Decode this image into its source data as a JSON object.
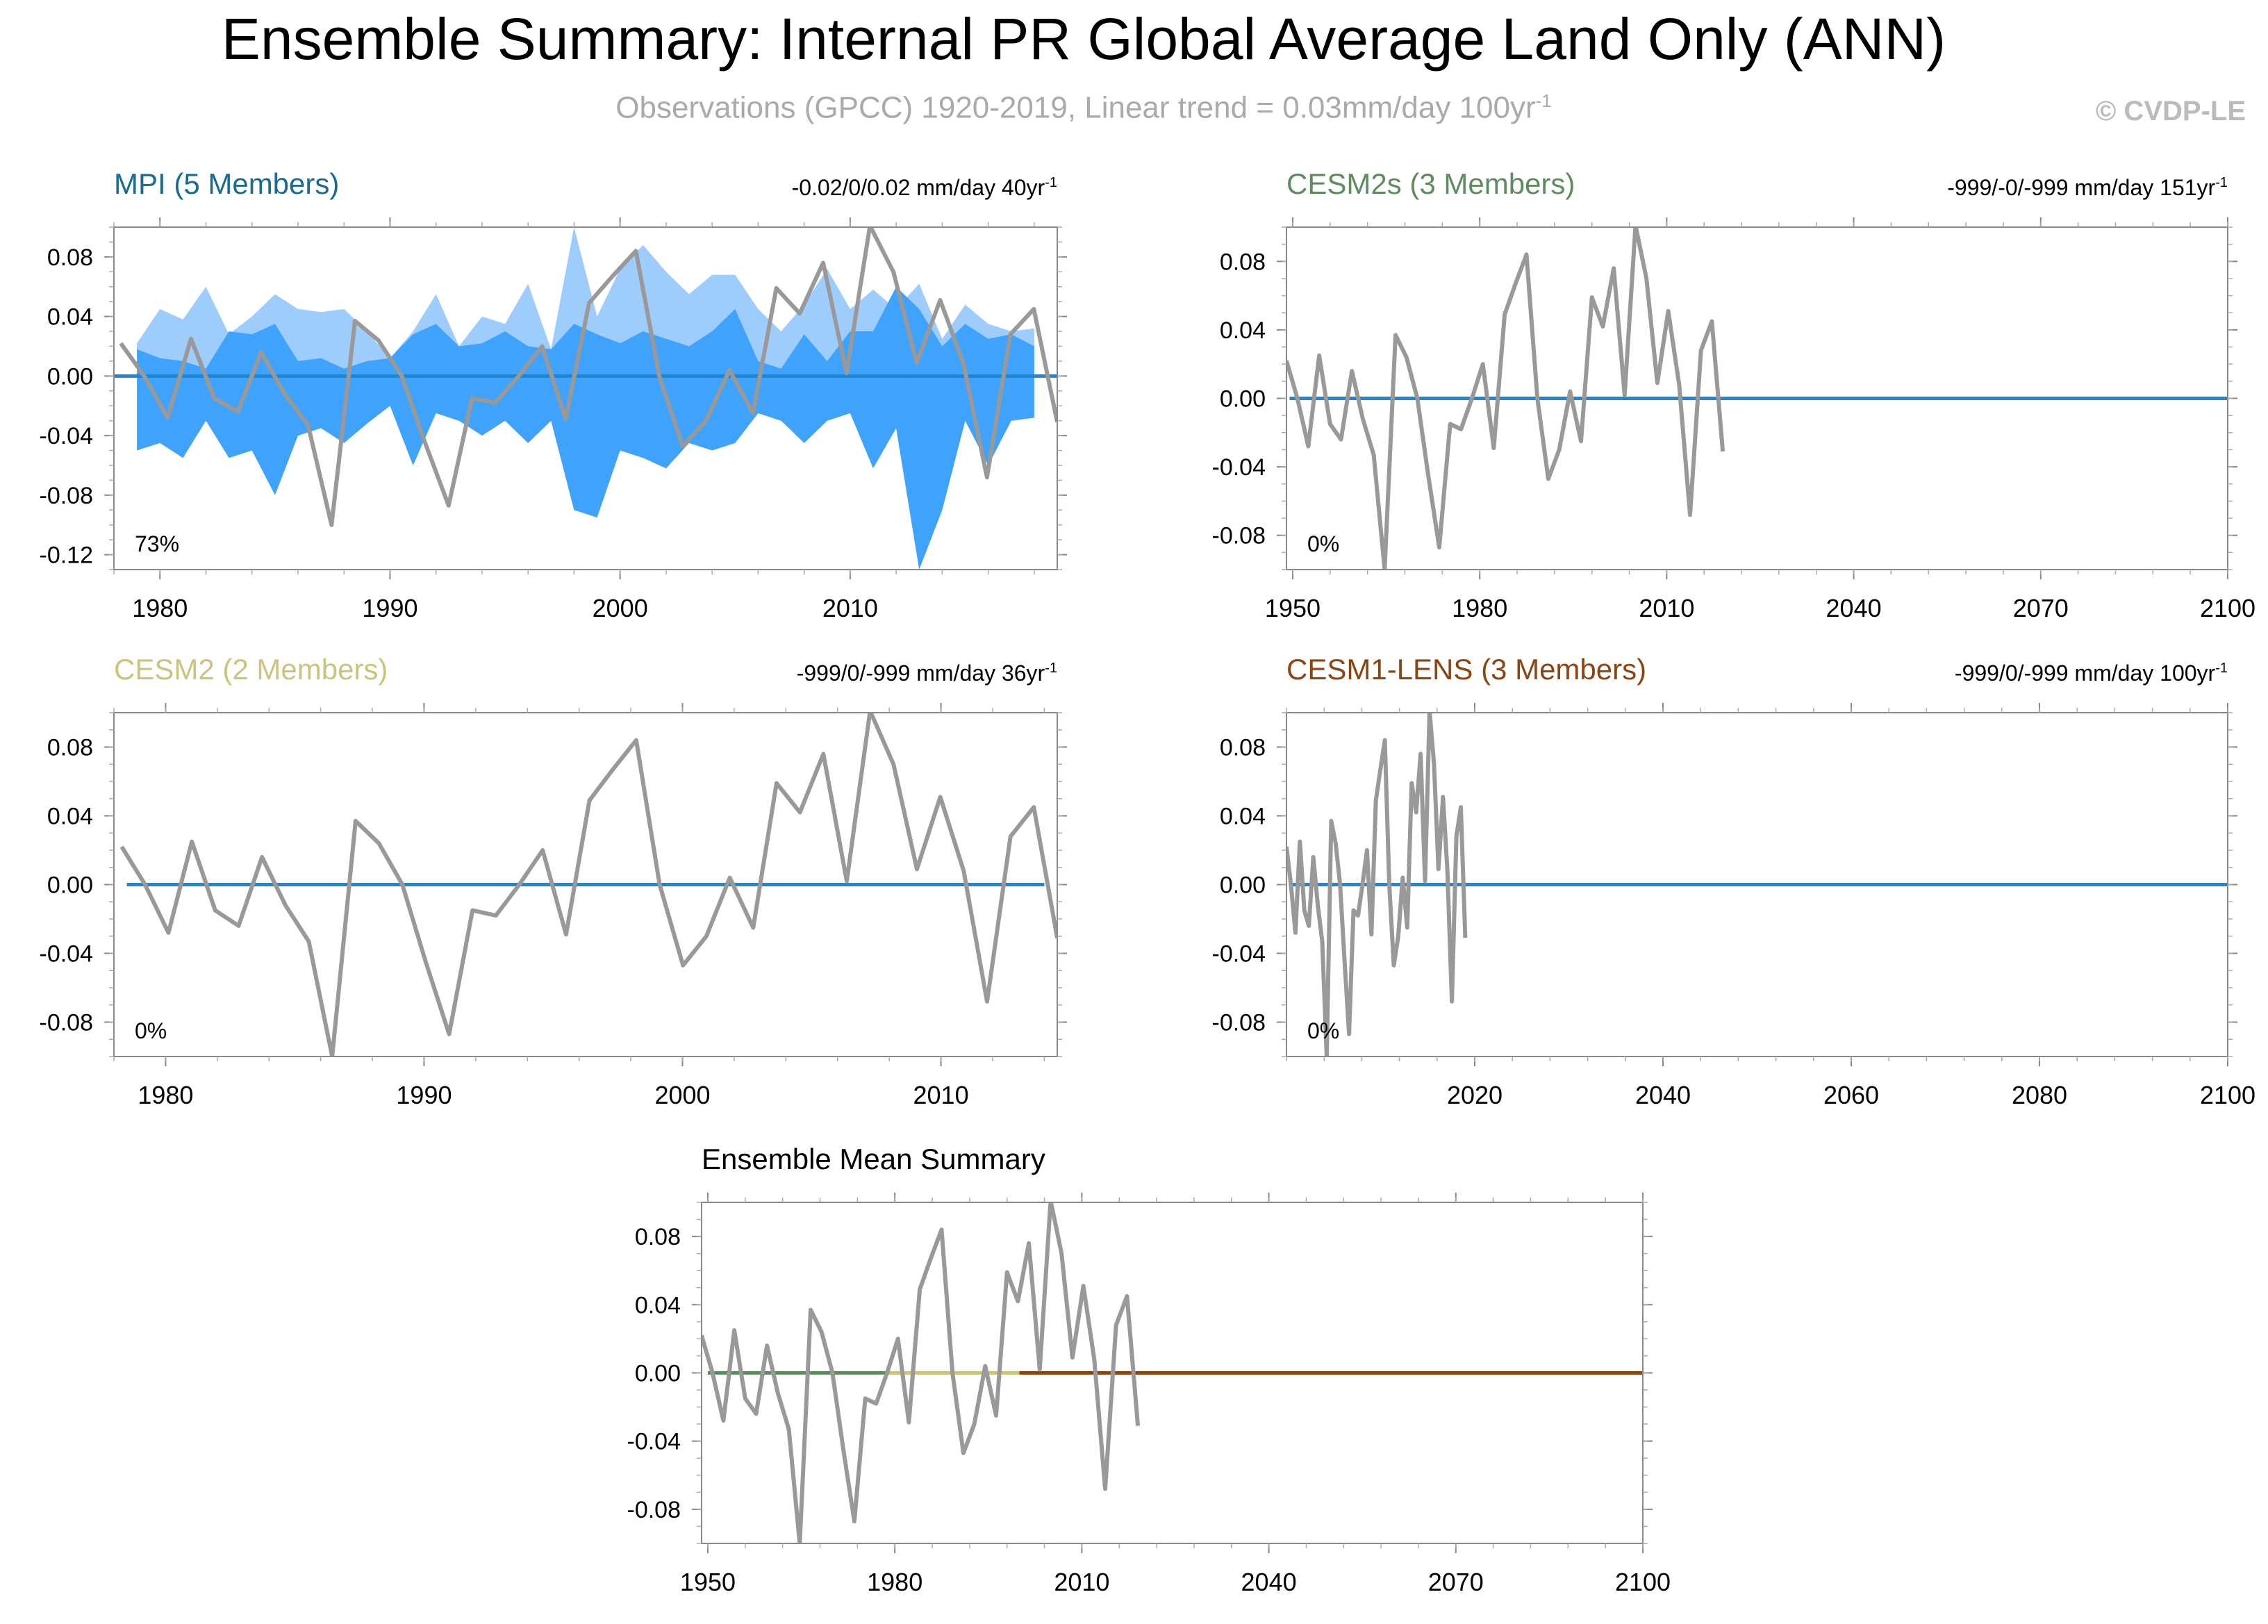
{
  "title": "Ensemble Summary: Internal PR Global Average Land Only (ANN)",
  "subtitle": {
    "text": "Observations (GPCC) 1920-2019, Linear trend = 0.03mm/day 100yr",
    "sup": "-1"
  },
  "credit": "© CVDP-LE",
  "colors": {
    "obs_line": "#999999",
    "zero_line": "#2185d0",
    "band_outer": "#9fcdfb",
    "band_inner": "#40a3fb",
    "mpi": "#1a6b8e",
    "cesm2s": "#5f8c5f",
    "cesm2": "#c9c47e",
    "cesm1": "#8b4513"
  },
  "obs_series": {
    "years": [
      1979,
      1980,
      1981,
      1982,
      1983,
      1984,
      1985,
      1986,
      1987,
      1988,
      1989,
      1990,
      1991,
      1992,
      1993,
      1994,
      1995,
      1996,
      1997,
      1998,
      1999,
      2000,
      2001,
      2002,
      2003,
      2004,
      2005,
      2006,
      2007,
      2008,
      2009,
      2010,
      2011,
      2012,
      2013,
      2014,
      2015,
      2016,
      2017,
      2018,
      2019
    ],
    "values": [
      0.022,
      0.0,
      -0.028,
      0.025,
      -0.015,
      -0.024,
      0.016,
      -0.012,
      -0.033,
      -0.1,
      0.037,
      0.024,
      0.0,
      -0.045,
      -0.087,
      -0.015,
      -0.018,
      0.0,
      0.02,
      -0.029,
      0.049,
      0.067,
      0.084,
      0.0,
      -0.047,
      -0.03,
      0.004,
      -0.025,
      0.059,
      0.042,
      0.076,
      0.002,
      0.101,
      0.07,
      0.009,
      0.051,
      0.008,
      -0.068,
      0.028,
      0.045,
      -0.031
    ]
  },
  "chart_data": [
    {
      "id": "mpi",
      "type": "area",
      "title": "MPI (5 Members)",
      "right_title": "-0.02/0/0.02 mm/day 40yr",
      "right_sup": "-1",
      "corner_label": "73%",
      "xlim": [
        1978,
        2019
      ],
      "ylim": [
        -0.13,
        0.1
      ],
      "x_ticks": [
        1980,
        1990,
        2000,
        2010
      ],
      "y_ticks": [
        -0.12,
        -0.08,
        -0.04,
        0.0,
        0.04,
        0.08
      ],
      "y_tick_labels": [
        "-0.12",
        "-0.08",
        "-0.04",
        "0.00",
        "0.04",
        "0.08"
      ],
      "ensemble_mean": 0.0,
      "obs_window": [
        1978.3,
        2019
      ],
      "band_years": [
        1979,
        1980,
        1981,
        1982,
        1983,
        1984,
        1985,
        1986,
        1987,
        1988,
        1989,
        1990,
        1991,
        1992,
        1993,
        1994,
        1995,
        1996,
        1997,
        1998,
        1999,
        2000,
        2001,
        2002,
        2003,
        2004,
        2005,
        2006,
        2007,
        2008,
        2009,
        2010,
        2011,
        2012,
        2013,
        2014,
        2015,
        2016,
        2017,
        2018
      ],
      "outer_upper": [
        0.022,
        0.045,
        0.038,
        0.06,
        0.028,
        0.04,
        0.055,
        0.045,
        0.043,
        0.045,
        0.03,
        0.012,
        0.03,
        0.055,
        0.02,
        0.04,
        0.035,
        0.062,
        0.018,
        0.1,
        0.04,
        0.072,
        0.088,
        0.07,
        0.055,
        0.068,
        0.068,
        0.045,
        0.03,
        0.048,
        0.072,
        0.045,
        0.058,
        0.045,
        0.062,
        0.025,
        0.048,
        0.035,
        0.03,
        0.032
      ],
      "inner_upper": [
        0.018,
        0.012,
        0.01,
        0.005,
        0.03,
        0.028,
        0.035,
        0.01,
        0.012,
        0.005,
        0.01,
        0.012,
        0.028,
        0.035,
        0.02,
        0.022,
        0.03,
        0.02,
        0.018,
        0.035,
        0.028,
        0.022,
        0.03,
        0.025,
        0.02,
        0.03,
        0.045,
        0.01,
        0.005,
        0.028,
        0.01,
        0.03,
        0.03,
        0.06,
        0.045,
        0.02,
        0.035,
        0.025,
        0.028,
        0.02
      ],
      "inner_lower": [
        -0.05,
        -0.045,
        -0.055,
        -0.03,
        -0.055,
        -0.05,
        -0.08,
        -0.04,
        -0.035,
        -0.045,
        -0.032,
        -0.02,
        -0.06,
        -0.025,
        -0.03,
        -0.04,
        -0.03,
        -0.045,
        -0.03,
        -0.09,
        -0.095,
        -0.05,
        -0.055,
        -0.062,
        -0.045,
        -0.05,
        -0.045,
        -0.025,
        -0.03,
        -0.045,
        -0.03,
        -0.025,
        -0.062,
        -0.035,
        -0.13,
        -0.09,
        -0.03,
        -0.06,
        -0.03,
        -0.028
      ],
      "outer_lower": [
        -0.05,
        -0.045,
        -0.055,
        -0.03,
        -0.055,
        -0.05,
        -0.08,
        -0.04,
        -0.035,
        -0.045,
        -0.032,
        -0.02,
        -0.06,
        -0.025,
        -0.03,
        -0.04,
        -0.03,
        -0.045,
        -0.03,
        -0.09,
        -0.095,
        -0.05,
        -0.055,
        -0.062,
        -0.045,
        -0.05,
        -0.045,
        -0.025,
        -0.03,
        -0.045,
        -0.03,
        -0.025,
        -0.062,
        -0.035,
        -0.13,
        -0.09,
        -0.03,
        -0.06,
        -0.03,
        -0.028
      ]
    },
    {
      "id": "cesm2s",
      "type": "line",
      "title": "CESM2s (3 Members)",
      "right_title": "-999/-0/-999 mm/day 151yr",
      "right_sup": "-1",
      "corner_label": "0%",
      "xlim": [
        1949,
        2100
      ],
      "ylim": [
        -0.1,
        0.1
      ],
      "x_ticks": [
        1950,
        1980,
        2010,
        2040,
        2070,
        2100
      ],
      "y_ticks": [
        -0.08,
        -0.04,
        0.0,
        0.04,
        0.08
      ],
      "y_tick_labels": [
        "-0.08",
        "-0.04",
        "0.00",
        "0.04",
        "0.08"
      ],
      "ensemble_mean": 0.0,
      "mean_range": [
        1949.5,
        2100
      ],
      "obs_window": [
        1949,
        2019
      ]
    },
    {
      "id": "cesm2",
      "type": "line",
      "title": "CESM2 (2 Members)",
      "right_title": "-999/0/-999 mm/day 36yr",
      "right_sup": "-1",
      "corner_label": "0%",
      "xlim": [
        1978,
        2014.5
      ],
      "ylim": [
        -0.1,
        0.1
      ],
      "x_ticks": [
        1980,
        1990,
        2000,
        2010
      ],
      "y_ticks": [
        -0.08,
        -0.04,
        0.0,
        0.04,
        0.08
      ],
      "y_tick_labels": [
        "-0.08",
        "-0.04",
        "0.00",
        "0.04",
        "0.08"
      ],
      "ensemble_mean": 0.0,
      "mean_range": [
        1978.5,
        2014
      ],
      "obs_window": [
        1978.3,
        2014.5
      ]
    },
    {
      "id": "cesm1",
      "type": "line",
      "title": "CESM1-LENS (3 Members)",
      "right_title": "-999/0/-999 mm/day 100yr",
      "right_sup": "-1",
      "corner_label": "0%",
      "xlim": [
        2000,
        2100
      ],
      "ylim": [
        -0.1,
        0.1
      ],
      "x_ticks": [
        2020,
        2040,
        2060,
        2080,
        2100
      ],
      "y_ticks": [
        -0.08,
        -0.04,
        0.0,
        0.04,
        0.08
      ],
      "y_tick_labels": [
        "-0.08",
        "-0.04",
        "0.00",
        "0.04",
        "0.08"
      ],
      "ensemble_mean": 0.0,
      "mean_range": [
        2000.5,
        2100
      ],
      "obs_window": [
        2000,
        2019
      ]
    },
    {
      "id": "mean",
      "type": "line",
      "title": "Ensemble Mean Summary",
      "xlim": [
        1949,
        2100
      ],
      "ylim": [
        -0.1,
        0.1
      ],
      "x_ticks": [
        1950,
        1980,
        2010,
        2040,
        2070,
        2100
      ],
      "y_ticks": [
        -0.08,
        -0.04,
        0.0,
        0.04,
        0.08
      ],
      "y_tick_labels": [
        "-0.08",
        "-0.04",
        "0.00",
        "0.04",
        "0.08"
      ],
      "obs_window": [
        1949,
        2019
      ],
      "mean_segments": [
        {
          "model": "cesm2s",
          "range": [
            1950,
            2014
          ]
        },
        {
          "model": "mpi",
          "range": [
            1979,
            2019
          ]
        },
        {
          "model": "cesm2",
          "range": [
            1979,
            2000
          ]
        },
        {
          "model": "cesm1",
          "range": [
            2000,
            2100
          ]
        }
      ]
    }
  ]
}
